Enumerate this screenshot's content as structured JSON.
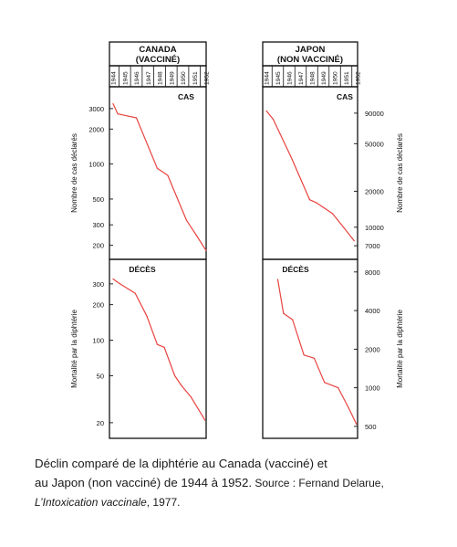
{
  "chart_data": [
    {
      "type": "line",
      "title": "CANADA\n(VACCINÉ)",
      "years": [
        "1944",
        "1945",
        "1946",
        "1947",
        "1948",
        "1949",
        "1950",
        "1951",
        "1952"
      ],
      "color": "#e8433f",
      "panels": [
        {
          "label": "CAS",
          "ylabel": "Nombre de cas déclarés",
          "scale": "log",
          "ylim": [
            175,
            4000
          ],
          "yticks": [
            3000,
            2000,
            1000,
            500,
            300,
            200
          ],
          "x": [
            1944.0,
            1944.4,
            1946.0,
            1947.8,
            1948.7,
            1950.3,
            1951.2,
            1952.0
          ],
          "values": [
            3300,
            2700,
            2500,
            920,
            800,
            330,
            240,
            180
          ]
        },
        {
          "label": "DÉCÈS",
          "ylabel": "Mortalité par la diphtérie",
          "scale": "log",
          "ylim": [
            17,
            420
          ],
          "yticks": [
            300,
            200,
            100,
            50,
            20
          ],
          "x": [
            1944.0,
            1944.6,
            1945.9,
            1946.9,
            1947.8,
            1948.4,
            1949.3,
            1949.9,
            1950.7,
            1951.9
          ],
          "values": [
            330,
            300,
            250,
            160,
            92,
            87,
            50,
            41,
            33,
            21
          ]
        }
      ]
    },
    {
      "type": "line",
      "title": "JAPON\n(NON VACCINÉ)",
      "years": [
        "1944",
        "1945",
        "1946",
        "1947",
        "1948",
        "1949",
        "1950",
        "1951",
        "1952"
      ],
      "color": "#e8433f",
      "panels": [
        {
          "label": "CAS",
          "ylabel": "Nombre de cas déclarés",
          "scale": "log",
          "ylim": [
            6200,
            130000
          ],
          "yticks": [
            90000,
            50000,
            20000,
            10000,
            7000
          ],
          "x": [
            1944.0,
            1944.6,
            1946.2,
            1947.8,
            1948.4,
            1949.8,
            1950.8,
            1951.7
          ],
          "values": [
            94000,
            80000,
            38000,
            17000,
            16000,
            13000,
            9900,
            7700
          ]
        },
        {
          "label": "DÉCÈS",
          "ylabel": "Mortalité par la diphtérie",
          "scale": "log",
          "ylim": [
            460,
            8800
          ],
          "yticks": [
            8000,
            4000,
            2000,
            1000,
            500
          ],
          "x": [
            1945.0,
            1945.5,
            1946.3,
            1947.3,
            1948.2,
            1949.1,
            1950.3,
            1951.2,
            1951.9
          ],
          "values": [
            7000,
            3800,
            3400,
            1800,
            1700,
            1100,
            1000,
            700,
            520
          ]
        }
      ]
    }
  ],
  "caption": {
    "line1": "Déclin comparé de la diphtérie au Canada (vacciné) et",
    "line2": "au Japon (non vacciné) de 1944 à 1952.",
    "source_label": " Source : Fernand Delarue,",
    "source_title": "L’Intoxication vaccinale",
    "source_year": ", 1977."
  }
}
